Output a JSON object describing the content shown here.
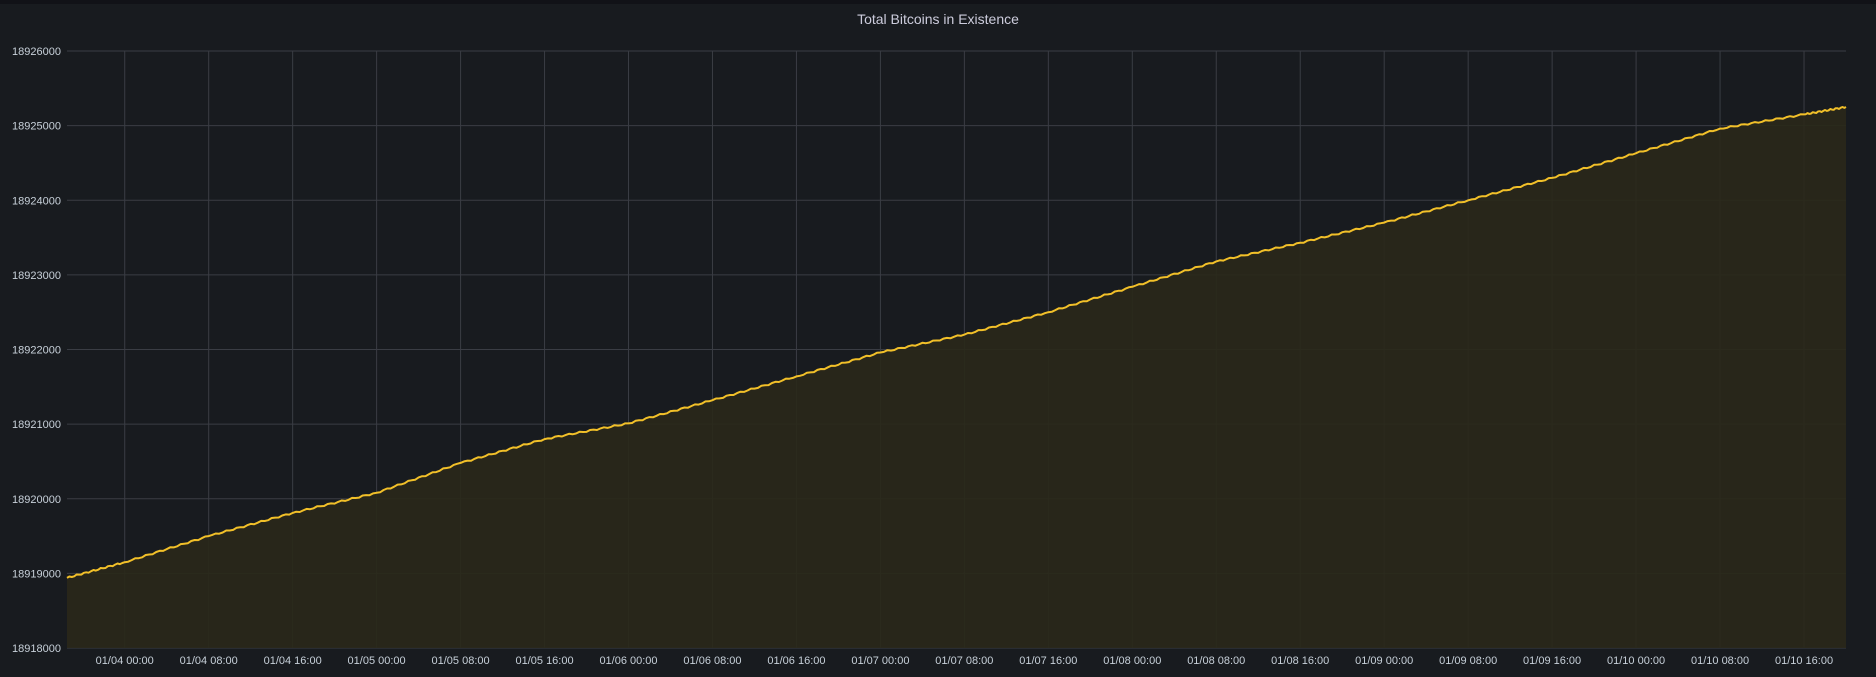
{
  "colors": {
    "background": "#181b1f",
    "grid": "#3a3d44",
    "line": "#f2c029",
    "fill": "#2a281a",
    "text": "#c7d0d9"
  },
  "chart_data": {
    "type": "area",
    "title": "Total Bitcoins in Existence",
    "xlabel": "",
    "ylabel": "",
    "ylim": [
      18918000,
      18926000
    ],
    "xlim": [
      "2022-01-03 18:30",
      "2022-01-10 20:00"
    ],
    "yticks": [
      18918000,
      18919000,
      18920000,
      18921000,
      18922000,
      18923000,
      18924000,
      18925000,
      18926000
    ],
    "ytick_labels": [
      "18918000",
      "18919000",
      "18920000",
      "18921000",
      "18922000",
      "18923000",
      "18924000",
      "18925000",
      "18926000"
    ],
    "xticks": [
      "2022-01-04 00:00",
      "2022-01-04 08:00",
      "2022-01-04 16:00",
      "2022-01-05 00:00",
      "2022-01-05 08:00",
      "2022-01-05 16:00",
      "2022-01-06 00:00",
      "2022-01-06 08:00",
      "2022-01-06 16:00",
      "2022-01-07 00:00",
      "2022-01-07 08:00",
      "2022-01-07 16:00",
      "2022-01-08 00:00",
      "2022-01-08 08:00",
      "2022-01-08 16:00",
      "2022-01-09 00:00",
      "2022-01-09 08:00",
      "2022-01-09 16:00",
      "2022-01-10 00:00",
      "2022-01-10 08:00",
      "2022-01-10 16:00"
    ],
    "xtick_labels": [
      "01/04 00:00",
      "01/04 08:00",
      "01/04 16:00",
      "01/05 00:00",
      "01/05 08:00",
      "01/05 16:00",
      "01/06 00:00",
      "01/06 08:00",
      "01/06 16:00",
      "01/07 00:00",
      "01/07 08:00",
      "01/07 16:00",
      "01/08 00:00",
      "01/08 08:00",
      "01/08 16:00",
      "01/09 00:00",
      "01/09 08:00",
      "01/09 16:00",
      "01/10 00:00",
      "01/10 08:00",
      "01/10 16:00"
    ],
    "grid": true,
    "legend": "none",
    "series": [
      {
        "x": [
          "2022-01-03 18:30",
          "2022-01-04 00:00",
          "2022-01-04 08:00",
          "2022-01-04 16:00",
          "2022-01-05 00:00",
          "2022-01-05 08:00",
          "2022-01-05 16:00",
          "2022-01-06 00:00",
          "2022-01-06 08:00",
          "2022-01-06 16:00",
          "2022-01-07 00:00",
          "2022-01-07 08:00",
          "2022-01-07 16:00",
          "2022-01-08 00:00",
          "2022-01-08 08:00",
          "2022-01-08 16:00",
          "2022-01-09 00:00",
          "2022-01-09 08:00",
          "2022-01-09 16:00",
          "2022-01-10 00:00",
          "2022-01-10 08:00",
          "2022-01-10 16:00",
          "2022-01-10 20:00"
        ],
        "y": [
          18918940,
          18919150,
          18919500,
          18919810,
          18920080,
          18920480,
          18920800,
          18921010,
          18921320,
          18921640,
          18921960,
          18922200,
          18922500,
          18922840,
          18923180,
          18923430,
          18923700,
          18924000,
          18924300,
          18924630,
          18924960,
          18925150,
          18925250
        ]
      }
    ]
  }
}
